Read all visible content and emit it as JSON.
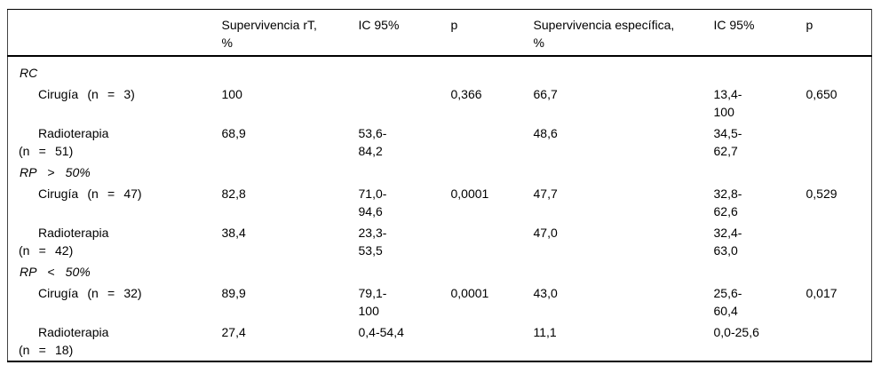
{
  "table": {
    "columns": [
      {
        "label": ""
      },
      {
        "label": "Supervivencia rT,\n%"
      },
      {
        "label": "IC 95%"
      },
      {
        "label": "p"
      },
      {
        "label": "Supervivencia específica,\n%"
      },
      {
        "label": "IC 95%"
      },
      {
        "label": "p"
      }
    ],
    "rows": [
      {
        "type": "group",
        "label": "RC"
      },
      {
        "type": "data",
        "label": "Cirugía (n = 3)",
        "surv_rt": "100",
        "ic_rt": "",
        "p_rt": "0,366",
        "surv_esp": "66,7",
        "ic_esp": "13,4-\n100",
        "p_esp": "0,650"
      },
      {
        "type": "data",
        "label": "Radioterapia\n(n = 51)",
        "surv_rt": "68,9",
        "ic_rt": "53,6-\n84,2",
        "p_rt": "",
        "surv_esp": "48,6",
        "ic_esp": "34,5-\n62,7",
        "p_esp": ""
      },
      {
        "type": "group",
        "label": "RP > 50%"
      },
      {
        "type": "data",
        "label": "Cirugía (n = 47)",
        "surv_rt": "82,8",
        "ic_rt": "71,0-\n94,6",
        "p_rt": "0,0001",
        "surv_esp": "47,7",
        "ic_esp": "32,8-\n62,6",
        "p_esp": "0,529"
      },
      {
        "type": "data",
        "label": "Radioterapia\n(n = 42)",
        "surv_rt": "38,4",
        "ic_rt": "23,3-\n53,5",
        "p_rt": "",
        "surv_esp": "47,0",
        "ic_esp": "32,4-\n63,0",
        "p_esp": ""
      },
      {
        "type": "group",
        "label": "RP < 50%"
      },
      {
        "type": "data",
        "label": "Cirugía (n = 32)",
        "surv_rt": "89,9",
        "ic_rt": "79,1-\n100",
        "p_rt": "0,0001",
        "surv_esp": "43,0",
        "ic_esp": "25,6-\n60,4",
        "p_esp": "0,017"
      },
      {
        "type": "data",
        "label": "Radioterapia\n(n = 18)",
        "surv_rt": "27,4",
        "ic_rt": "0,4-54,4",
        "p_rt": "",
        "surv_esp": "11,1",
        "ic_esp": "0,0-25,6",
        "p_esp": ""
      }
    ]
  }
}
